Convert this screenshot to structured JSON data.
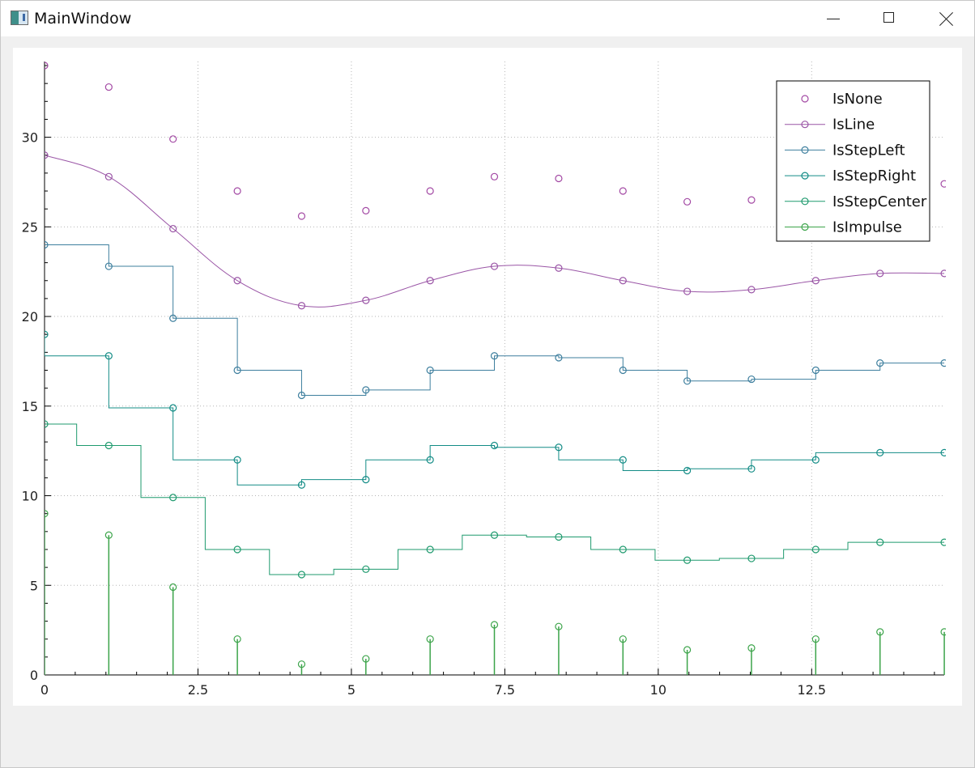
{
  "window": {
    "title": "MainWindow"
  },
  "chart_data": {
    "type": "line",
    "title": "",
    "xlabel": "",
    "ylabel": "",
    "xlim": [
      0,
      14.66
    ],
    "ylim": [
      0,
      34
    ],
    "grid": true,
    "legend_position": "top-right",
    "x_ticks": [
      0,
      2.5,
      5,
      7.5,
      10,
      12.5
    ],
    "x_tick_labels": [
      "0",
      "2.5",
      "5",
      "7.5",
      "10",
      "12.5"
    ],
    "y_ticks": [
      0,
      5,
      10,
      15,
      20,
      25,
      30
    ],
    "y_tick_labels": [
      "0",
      "5",
      "10",
      "15",
      "20",
      "25",
      "30"
    ],
    "x": [
      0,
      1.047,
      2.094,
      3.142,
      4.189,
      5.236,
      6.283,
      7.33,
      8.378,
      9.425,
      10.472,
      11.519,
      12.566,
      13.614,
      14.661
    ],
    "series": [
      {
        "name": "IsNone",
        "style": "none",
        "color": "#a349a4",
        "values": [
          34,
          32.8,
          29.9,
          27,
          25.6,
          25.9,
          27,
          27.8,
          27.7,
          27,
          26.4,
          26.5,
          27,
          27.4,
          27.4
        ]
      },
      {
        "name": "IsLine",
        "style": "line",
        "color": "#9a55a6",
        "values": [
          29,
          27.8,
          24.9,
          22,
          20.6,
          20.9,
          22,
          22.8,
          22.7,
          22,
          21.4,
          21.5,
          22,
          22.4,
          22.4
        ]
      },
      {
        "name": "IsStepLeft",
        "style": "steps-left",
        "color": "#3e7f9e",
        "values": [
          24,
          22.8,
          19.9,
          17,
          15.6,
          15.9,
          17,
          17.8,
          17.7,
          17,
          16.4,
          16.5,
          17,
          17.4,
          17.4
        ]
      },
      {
        "name": "IsStepRight",
        "style": "steps-right",
        "color": "#138c86",
        "values": [
          19,
          17.8,
          14.9,
          12,
          10.6,
          10.9,
          12,
          12.8,
          12.7,
          12,
          11.4,
          11.5,
          12,
          12.4,
          12.4
        ]
      },
      {
        "name": "IsStepCenter",
        "style": "steps-center",
        "color": "#1f9a6e",
        "values": [
          14,
          12.8,
          9.9,
          7,
          5.6,
          5.9,
          7,
          7.8,
          7.7,
          7,
          6.4,
          6.5,
          7,
          7.4,
          7.4
        ]
      },
      {
        "name": "IsImpulse",
        "style": "impulse",
        "color": "#3ca44a",
        "values": [
          9,
          7.8,
          4.9,
          2,
          0.6,
          0.9,
          2,
          2.8,
          2.7,
          2,
          1.4,
          1.5,
          2,
          2.4,
          2.4
        ]
      }
    ]
  }
}
